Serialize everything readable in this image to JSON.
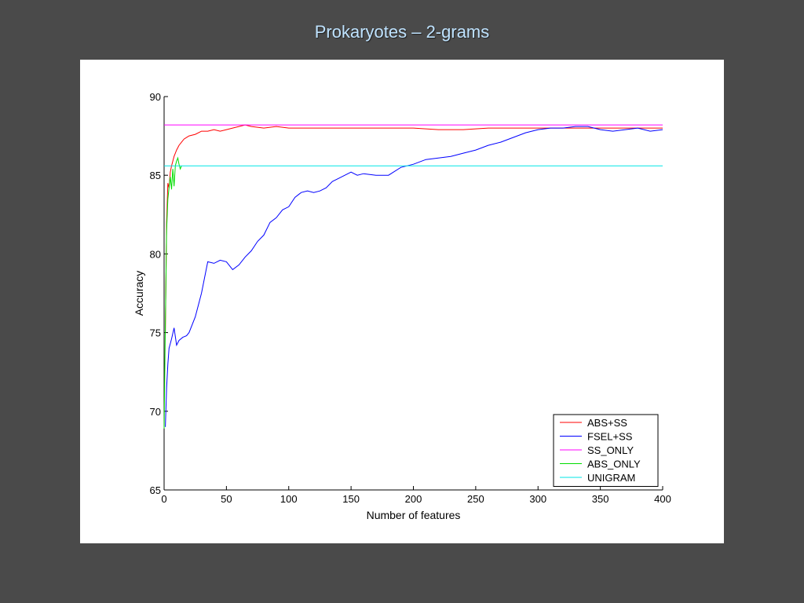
{
  "slide": {
    "title": "Prokaryotes – 2-grams"
  },
  "chart_data": {
    "type": "line",
    "title": "",
    "xlabel": "Number of features",
    "ylabel": "Accuracy",
    "xlim": [
      0,
      400
    ],
    "ylim": [
      65,
      90
    ],
    "xticks": [
      0,
      50,
      100,
      150,
      200,
      250,
      300,
      350,
      400
    ],
    "yticks": [
      65,
      70,
      75,
      80,
      85,
      90
    ],
    "grid": false,
    "legend_position": "bottom-right",
    "series": [
      {
        "name": "ABS+SS",
        "color": "#ff0000",
        "x": [
          1,
          2,
          3,
          4,
          5,
          6,
          7,
          8,
          10,
          12,
          14,
          16,
          18,
          20,
          25,
          30,
          35,
          40,
          45,
          50,
          55,
          60,
          65,
          70,
          80,
          90,
          100,
          120,
          140,
          160,
          180,
          200,
          220,
          240,
          260,
          280,
          300,
          320,
          340,
          360,
          380,
          400
        ],
        "y": [
          75.0,
          82.0,
          84.5,
          84.2,
          85.2,
          85.6,
          85.9,
          86.2,
          86.6,
          86.9,
          87.1,
          87.3,
          87.4,
          87.5,
          87.6,
          87.8,
          87.8,
          87.9,
          87.8,
          87.9,
          88.0,
          88.1,
          88.2,
          88.1,
          88.0,
          88.1,
          88.0,
          88.0,
          88.0,
          88.0,
          88.0,
          88.0,
          87.9,
          87.9,
          88.0,
          88.0,
          88.0,
          88.0,
          88.0,
          88.0,
          88.0,
          88.0
        ]
      },
      {
        "name": "FSEL+SS",
        "color": "#0000ff",
        "x": [
          1,
          2,
          3,
          4,
          5,
          6,
          8,
          10,
          12,
          15,
          18,
          20,
          25,
          30,
          35,
          40,
          45,
          50,
          55,
          60,
          65,
          70,
          75,
          80,
          85,
          90,
          95,
          100,
          105,
          110,
          115,
          120,
          125,
          130,
          135,
          140,
          145,
          150,
          155,
          160,
          170,
          180,
          190,
          200,
          210,
          220,
          230,
          240,
          250,
          260,
          270,
          280,
          290,
          300,
          310,
          320,
          330,
          340,
          350,
          360,
          370,
          380,
          390,
          400
        ],
        "y": [
          69.0,
          71.5,
          73.0,
          74.0,
          74.3,
          74.6,
          75.3,
          74.2,
          74.5,
          74.7,
          74.8,
          75.0,
          76.0,
          77.5,
          79.5,
          79.4,
          79.6,
          79.5,
          79.0,
          79.3,
          79.8,
          80.2,
          80.8,
          81.2,
          82.0,
          82.3,
          82.8,
          83.0,
          83.6,
          83.9,
          84.0,
          83.9,
          84.0,
          84.2,
          84.6,
          84.8,
          85.0,
          85.2,
          85.0,
          85.1,
          85.0,
          85.0,
          85.5,
          85.7,
          86.0,
          86.1,
          86.2,
          86.4,
          86.6,
          86.9,
          87.1,
          87.4,
          87.7,
          87.9,
          88.0,
          88.0,
          88.1,
          88.1,
          87.9,
          87.8,
          87.9,
          88.0,
          87.8,
          87.9
        ]
      },
      {
        "name": "SS_ONLY",
        "color": "#ff00ff",
        "x": [
          0,
          400
        ],
        "y": [
          88.2,
          88.2
        ]
      },
      {
        "name": "ABS_ONLY",
        "color": "#00dd00",
        "x": [
          0,
          1,
          2,
          3,
          4,
          5,
          6,
          7,
          8,
          9,
          10,
          11,
          12,
          13,
          14
        ],
        "y": [
          68.9,
          75.5,
          81.5,
          83.5,
          84.2,
          84.9,
          84.1,
          85.4,
          84.3,
          85.6,
          85.9,
          86.1,
          85.7,
          85.4,
          85.6
        ]
      },
      {
        "name": "UNIGRAM",
        "color": "#00e5e5",
        "x": [
          0,
          400
        ],
        "y": [
          85.6,
          85.6
        ]
      }
    ]
  }
}
